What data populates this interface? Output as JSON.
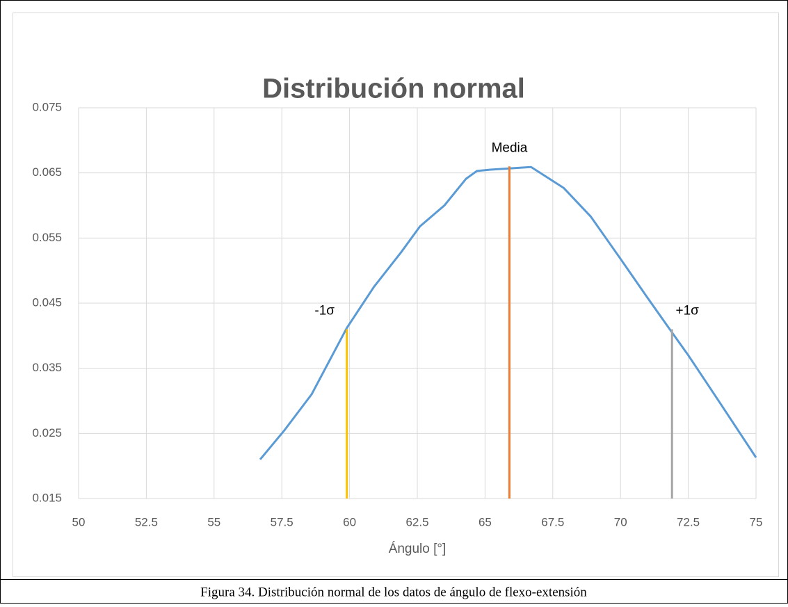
{
  "chart_data": {
    "type": "line",
    "title": "Distribución normal",
    "x_label": "Ángulo [°]",
    "caption": "Figura 34. Distribución normal de los datos de ángulo de flexo-extensión",
    "series": [
      {
        "color": "#5b9bd5",
        "x": [
          56.7,
          57.6,
          58.6,
          59.9,
          60.9,
          61.9,
          62.6,
          63.5,
          64.3,
          64.7,
          65.2,
          66.7,
          67.9,
          68.9,
          70.0,
          71.0,
          71.9,
          72.5,
          73.7,
          75.0
        ],
        "values": [
          0.021,
          0.0255,
          0.031,
          0.0412,
          0.0475,
          0.0528,
          0.0568,
          0.06,
          0.0641,
          0.0653,
          0.0655,
          0.0659,
          0.0627,
          0.0583,
          0.0518,
          0.0458,
          0.0405,
          0.037,
          0.0295,
          0.0213
        ]
      }
    ],
    "vlines": [
      {
        "label": "-1σ",
        "x": 59.9,
        "y": 0.041,
        "color": "#ffc000"
      },
      {
        "label": "Media",
        "x": 65.9,
        "y": 0.066,
        "color": "#ed7d31"
      },
      {
        "label": "+1σ",
        "x": 71.9,
        "y": 0.041,
        "color": "#a5a5a5"
      }
    ],
    "xlim": [
      50,
      75
    ],
    "xticks": [
      50,
      52.5,
      55,
      57.5,
      60,
      62.5,
      65,
      67.5,
      70,
      72.5,
      75
    ],
    "ylim": [
      0.015,
      0.075
    ],
    "yticks": [
      0.015,
      0.025,
      0.035,
      0.045,
      0.055,
      0.065,
      0.075
    ],
    "grid": true
  }
}
